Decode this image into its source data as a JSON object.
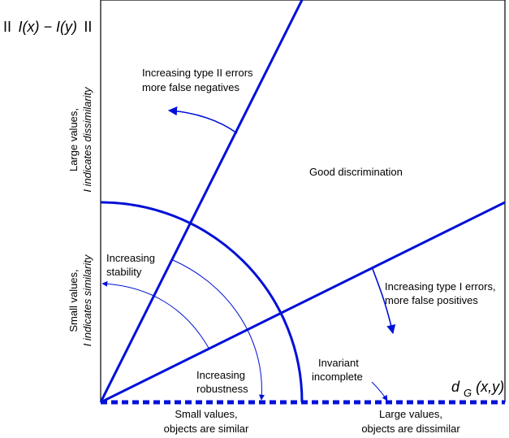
{
  "y_axis_title": {
    "bars_left": "II",
    "expression": "I(x) − I(y)",
    "bars_right": "II"
  },
  "x_axis_title": {
    "main": "d",
    "subscript": "G",
    "args": "(x,y)"
  },
  "x_axis_labels": {
    "left_line1": "Small values,",
    "left_line2": "objects are similar",
    "right_line1": "Large values,",
    "right_line2": "objects are dissimilar"
  },
  "y_axis_labels": {
    "upper_line1": "Large values,",
    "upper_line2": "I indicates dissimilarity",
    "lower_line1": "Small values,",
    "lower_line2": "I indicates similarity"
  },
  "regions": {
    "good_discrimination": "Good discrimination"
  },
  "annotations": {
    "type2_line1": "Increasing type II errors",
    "type2_line2": "more false negatives",
    "type1_line1": "Increasing type I errors,",
    "type1_line2": "more false positives",
    "stability_line1": "Increasing",
    "stability_line2": "stability",
    "robustness_line1": "Increasing",
    "robustness_line2": "robustness",
    "invariant_line1": "Invariant",
    "invariant_line2": "incomplete"
  },
  "colors": {
    "accent": "#0010d8",
    "frame": "#000000"
  }
}
